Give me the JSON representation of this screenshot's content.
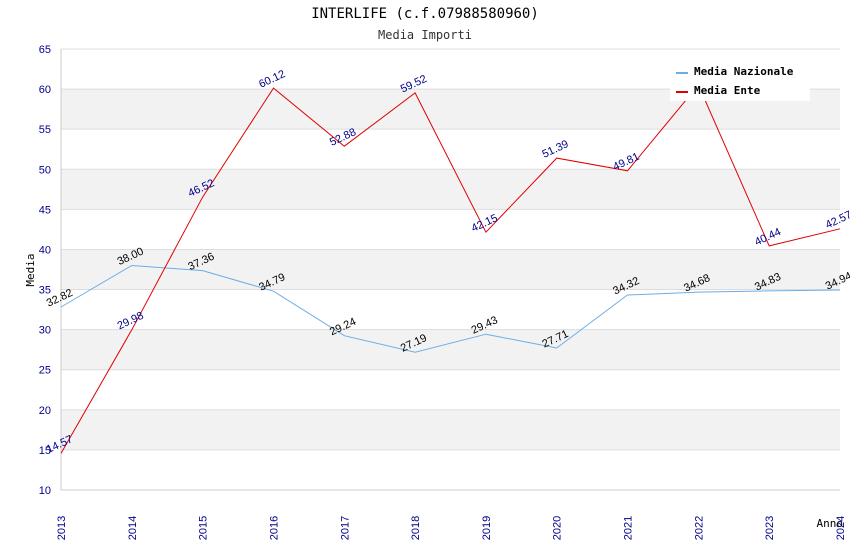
{
  "chart_data": {
    "type": "line",
    "title": "INTERLIFE (c.f.07988580960)",
    "subtitle": "Media Importi",
    "xlabel": "Anno",
    "ylabel": "Media",
    "ylim": [
      10,
      65
    ],
    "yticks": [
      10,
      15,
      20,
      25,
      30,
      35,
      40,
      45,
      50,
      55,
      60,
      65
    ],
    "x": [
      "2013",
      "2014",
      "2015",
      "2016",
      "2017",
      "2018",
      "2019",
      "2020",
      "2021",
      "2022",
      "2023",
      "2024"
    ],
    "grid": "horizontal alternating bands",
    "legend_position": "top-right",
    "series": [
      {
        "name": "Media Nazionale",
        "color": "#6aaee8",
        "values": [
          32.82,
          38.0,
          37.36,
          34.79,
          29.24,
          27.19,
          29.43,
          27.71,
          34.32,
          34.68,
          34.83,
          34.94
        ],
        "labels": [
          "32.82",
          "38.00",
          "37.36",
          "34.79",
          "29.24",
          "27.19",
          "29.43",
          "27.71",
          "34.32",
          "34.68",
          "34.83",
          "34.94"
        ]
      },
      {
        "name": "Media Ente",
        "color": "#e00000",
        "values": [
          14.57,
          29.98,
          46.52,
          60.12,
          52.88,
          59.52,
          42.15,
          51.39,
          49.81,
          60.5,
          40.44,
          42.57
        ],
        "labels": [
          "14.57",
          "29.98",
          "46.52",
          "60.12",
          "52.88",
          "59.52",
          "42.15",
          "51.39",
          "49.81",
          "",
          "40.44",
          "42.57"
        ]
      }
    ]
  }
}
